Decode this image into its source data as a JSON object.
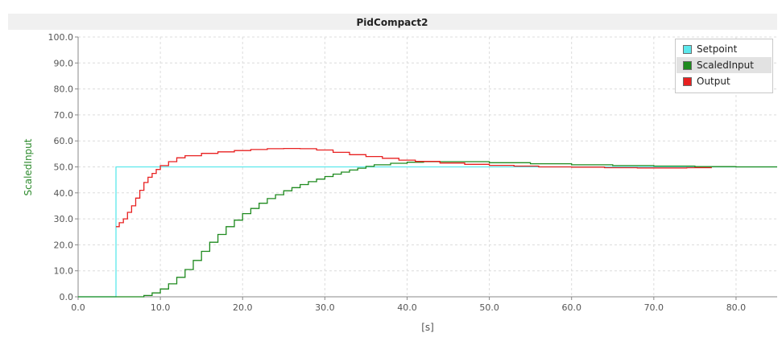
{
  "chart_data": {
    "type": "line",
    "title": "PidCompact2",
    "xlabel": "[s]",
    "ylabel": "ScaledInput",
    "xlim": [
      0,
      85
    ],
    "ylim": [
      0,
      100
    ],
    "x_ticks": [
      "0.0",
      "10.0",
      "20.0",
      "30.0",
      "40.0",
      "50.0",
      "60.0",
      "70.0",
      "80.0"
    ],
    "y_ticks": [
      "0.0",
      "10.0",
      "20.0",
      "30.0",
      "40.0",
      "50.0",
      "60.0",
      "70.0",
      "80.0",
      "90.0",
      "100.0"
    ],
    "grid": true,
    "legend_position": "top-right",
    "series": [
      {
        "name": "Setpoint",
        "color": "#5ce8ec",
        "step": true,
        "x": [
          0,
          4.6,
          4.6,
          85
        ],
        "y": [
          0,
          0,
          50,
          50
        ]
      },
      {
        "name": "ScaledInput",
        "color": "#1e8a1e",
        "step": true,
        "x": [
          0,
          7,
          8,
          9,
          10,
          11,
          12,
          13,
          14,
          15,
          16,
          17,
          18,
          19,
          20,
          21,
          22,
          23,
          24,
          25,
          26,
          27,
          28,
          29,
          30,
          31,
          32,
          33,
          34,
          35,
          36,
          38,
          40,
          42,
          45,
          50,
          55,
          60,
          65,
          70,
          75,
          80,
          85
        ],
        "y": [
          0,
          0,
          0.5,
          1.5,
          3,
          5,
          7.5,
          10.5,
          14,
          17.5,
          21,
          24,
          27,
          29.5,
          32,
          34,
          36,
          37.8,
          39.3,
          40.8,
          42,
          43.2,
          44.3,
          45.3,
          46.3,
          47.2,
          48,
          48.8,
          49.5,
          50.2,
          50.8,
          51.4,
          51.8,
          52,
          52,
          51.6,
          51.2,
          50.8,
          50.5,
          50.3,
          50.1,
          50,
          50
        ]
      },
      {
        "name": "Output",
        "color": "#e82020",
        "step": true,
        "x": [
          4.6,
          5,
          5.5,
          6,
          6.5,
          7,
          7.5,
          8,
          8.5,
          9,
          9.5,
          10,
          11,
          12,
          13,
          15,
          17,
          19,
          21,
          23,
          25,
          27,
          29,
          31,
          33,
          35,
          37,
          39,
          41,
          44,
          47,
          50,
          53,
          56,
          56,
          60,
          64,
          68,
          72,
          74,
          77
        ],
        "y": [
          27,
          28.5,
          30,
          32.5,
          35,
          38,
          41,
          44,
          46,
          47.5,
          49,
          50.5,
          52,
          53.5,
          54.3,
          55.2,
          55.8,
          56.3,
          56.7,
          57,
          57.1,
          57,
          56.5,
          55.6,
          54.7,
          54,
          53.3,
          52.6,
          52.1,
          51.5,
          51,
          50.6,
          50.3,
          50.1,
          50,
          49.9,
          49.7,
          49.6,
          49.6,
          49.7,
          49.8
        ]
      }
    ]
  }
}
